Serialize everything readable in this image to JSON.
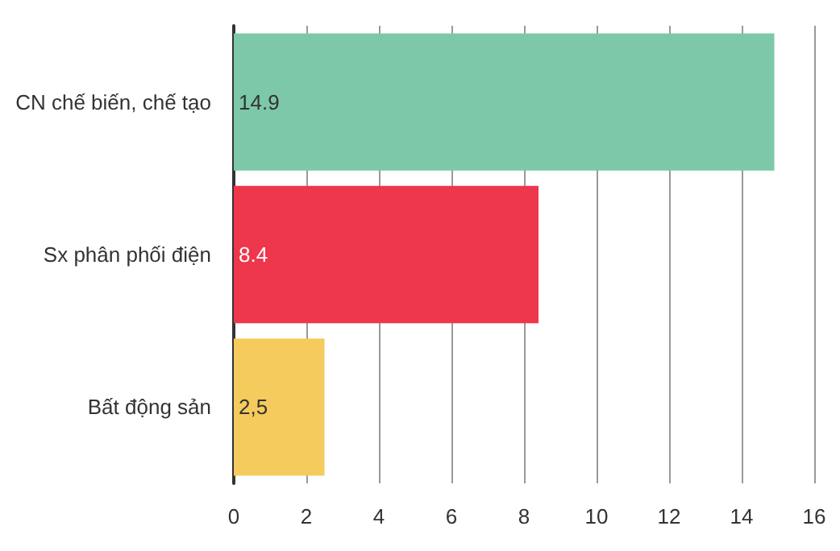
{
  "chart_data": {
    "type": "bar",
    "orientation": "horizontal",
    "categories": [
      "CN chế biến, chế tạo",
      "Sx phân phối điện",
      "Bất động sản"
    ],
    "values": [
      14.9,
      8.4,
      2.5
    ],
    "value_labels": [
      "14.9",
      "8.4",
      "2,5"
    ],
    "colors": [
      "#7dc8a8",
      "#ee364c",
      "#f4cb5c"
    ],
    "xlim": [
      0,
      16
    ],
    "xticks": [
      0,
      2,
      4,
      6,
      8,
      10,
      12,
      14,
      16
    ],
    "grid": "x"
  }
}
